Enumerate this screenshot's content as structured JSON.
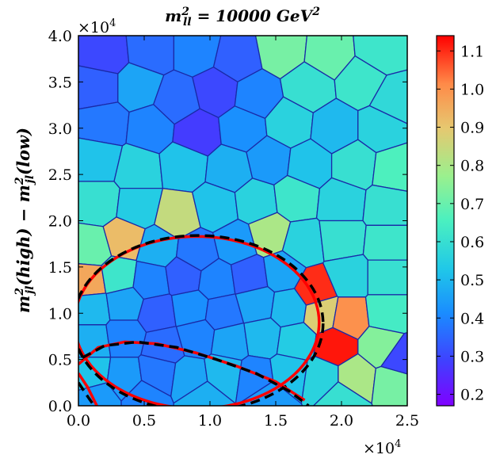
{
  "chart_data": {
    "type": "heatmap",
    "title": "m²ₗₗ = 10000 GeV²",
    "title_main": "m",
    "title_sup": "2",
    "title_sub": "ll",
    "title_rest": " = 10000 GeV",
    "title_unit_sup": "2",
    "ylabel": "m²ⱼₗ(high) − m²ⱼₗ(low)",
    "ylabel_parts": {
      "m": "m",
      "sup": "2",
      "sub": "jl",
      "a": "(high) − ",
      "b": "(low)"
    },
    "xlim": [
      0,
      25000
    ],
    "ylim": [
      0,
      40000
    ],
    "x_ticks": [
      0,
      5000,
      10000,
      15000,
      20000,
      25000
    ],
    "x_tick_labels": [
      "0.0",
      "0.5",
      "1.0",
      "1.5",
      "2.0",
      "2.5"
    ],
    "y_ticks": [
      0,
      5000,
      10000,
      15000,
      20000,
      25000,
      30000,
      35000,
      40000
    ],
    "y_tick_labels": [
      "0.0",
      "0.5",
      "1.0",
      "1.5",
      "2.0",
      "2.5",
      "3.0",
      "3.5",
      "4.0"
    ],
    "x_multiplier": "×10",
    "x_multiplier_exp": "4",
    "y_multiplier": "×10",
    "y_multiplier_exp": "4",
    "colorbar": {
      "min": 0.17,
      "max": 1.14,
      "ticks": [
        0.2,
        0.3,
        0.4,
        0.5,
        0.6,
        0.7,
        0.8,
        0.9,
        1.0,
        1.1
      ],
      "tick_labels": [
        "0.2",
        "0.3",
        "0.4",
        "0.5",
        "0.6",
        "0.7",
        "0.8",
        "0.9",
        "1.0",
        "1.1"
      ],
      "colormap": "rainbow"
    },
    "cell_edge_color": "#1a2aa8",
    "cells": [
      {
        "x": 2000,
        "y": 38000,
        "v": 0.3
      },
      {
        "x": 5500,
        "y": 38500,
        "v": 0.36
      },
      {
        "x": 9000,
        "y": 38500,
        "v": 0.4
      },
      {
        "x": 12000,
        "y": 37500,
        "v": 0.34
      },
      {
        "x": 15500,
        "y": 38500,
        "v": 0.72
      },
      {
        "x": 19000,
        "y": 38000,
        "v": 0.7
      },
      {
        "x": 23000,
        "y": 38500,
        "v": 0.62
      },
      {
        "x": 1500,
        "y": 34500,
        "v": 0.34
      },
      {
        "x": 4500,
        "y": 34500,
        "v": 0.46
      },
      {
        "x": 7500,
        "y": 33000,
        "v": 0.36
      },
      {
        "x": 10500,
        "y": 34000,
        "v": 0.3
      },
      {
        "x": 13500,
        "y": 33500,
        "v": 0.4
      },
      {
        "x": 17500,
        "y": 34500,
        "v": 0.6
      },
      {
        "x": 21500,
        "y": 35000,
        "v": 0.62
      },
      {
        "x": 24000,
        "y": 33000,
        "v": 0.58
      },
      {
        "x": 2000,
        "y": 30500,
        "v": 0.38
      },
      {
        "x": 5500,
        "y": 30000,
        "v": 0.4
      },
      {
        "x": 9000,
        "y": 29500,
        "v": 0.28
      },
      {
        "x": 12500,
        "y": 30000,
        "v": 0.42
      },
      {
        "x": 16000,
        "y": 30500,
        "v": 0.56
      },
      {
        "x": 19500,
        "y": 30000,
        "v": 0.5
      },
      {
        "x": 23000,
        "y": 30000,
        "v": 0.56
      },
      {
        "x": 1500,
        "y": 26500,
        "v": 0.52
      },
      {
        "x": 4500,
        "y": 25500,
        "v": 0.56
      },
      {
        "x": 8000,
        "y": 26000,
        "v": 0.52
      },
      {
        "x": 11500,
        "y": 25500,
        "v": 0.48
      },
      {
        "x": 14500,
        "y": 26500,
        "v": 0.44
      },
      {
        "x": 17500,
        "y": 26000,
        "v": 0.52
      },
      {
        "x": 21000,
        "y": 26000,
        "v": 0.6
      },
      {
        "x": 24000,
        "y": 25500,
        "v": 0.66
      },
      {
        "x": 1500,
        "y": 22000,
        "v": 0.6
      },
      {
        "x": 4500,
        "y": 21500,
        "v": 0.54
      },
      {
        "x": 7500,
        "y": 20500,
        "v": 0.84
      },
      {
        "x": 10500,
        "y": 21500,
        "v": 0.52
      },
      {
        "x": 13500,
        "y": 22000,
        "v": 0.56
      },
      {
        "x": 16500,
        "y": 22500,
        "v": 0.62
      },
      {
        "x": 20000,
        "y": 22000,
        "v": 0.56
      },
      {
        "x": 23500,
        "y": 21500,
        "v": 0.6
      },
      {
        "x": 1000,
        "y": 17000,
        "v": 0.7
      },
      {
        "x": 3500,
        "y": 18000,
        "v": 0.92
      },
      {
        "x": 6000,
        "y": 17000,
        "v": 0.48
      },
      {
        "x": 9000,
        "y": 16500,
        "v": 0.38
      },
      {
        "x": 12000,
        "y": 17500,
        "v": 0.44
      },
      {
        "x": 14500,
        "y": 18500,
        "v": 0.8
      },
      {
        "x": 17000,
        "y": 17500,
        "v": 0.56
      },
      {
        "x": 20000,
        "y": 18000,
        "v": 0.6
      },
      {
        "x": 23500,
        "y": 17500,
        "v": 0.62
      },
      {
        "x": 800,
        "y": 13500,
        "v": 0.96
      },
      {
        "x": 3000,
        "y": 14000,
        "v": 0.62
      },
      {
        "x": 5500,
        "y": 13500,
        "v": 0.4
      },
      {
        "x": 8000,
        "y": 14000,
        "v": 0.34
      },
      {
        "x": 10500,
        "y": 13500,
        "v": 0.4
      },
      {
        "x": 13000,
        "y": 14000,
        "v": 0.34
      },
      {
        "x": 15500,
        "y": 14500,
        "v": 0.46
      },
      {
        "x": 18000,
        "y": 12500,
        "v": 1.1
      },
      {
        "x": 20500,
        "y": 14000,
        "v": 0.56
      },
      {
        "x": 23500,
        "y": 14000,
        "v": 0.6
      },
      {
        "x": 1000,
        "y": 10500,
        "v": 0.5
      },
      {
        "x": 3500,
        "y": 11000,
        "v": 0.46
      },
      {
        "x": 6000,
        "y": 10000,
        "v": 0.34
      },
      {
        "x": 8500,
        "y": 10500,
        "v": 0.42
      },
      {
        "x": 11000,
        "y": 10000,
        "v": 0.38
      },
      {
        "x": 13500,
        "y": 11000,
        "v": 0.46
      },
      {
        "x": 16000,
        "y": 10500,
        "v": 0.5
      },
      {
        "x": 18500,
        "y": 10000,
        "v": 0.88
      },
      {
        "x": 20500,
        "y": 9500,
        "v": 1.0
      },
      {
        "x": 23500,
        "y": 10000,
        "v": 0.64
      },
      {
        "x": 1000,
        "y": 7000,
        "v": 0.48
      },
      {
        "x": 3500,
        "y": 7500,
        "v": 0.4
      },
      {
        "x": 6500,
        "y": 6500,
        "v": 0.36
      },
      {
        "x": 9000,
        "y": 7500,
        "v": 0.4
      },
      {
        "x": 11500,
        "y": 7000,
        "v": 0.46
      },
      {
        "x": 14000,
        "y": 7500,
        "v": 0.5
      },
      {
        "x": 16500,
        "y": 7000,
        "v": 0.54
      },
      {
        "x": 19500,
        "y": 6500,
        "v": 1.12
      },
      {
        "x": 23000,
        "y": 6500,
        "v": 0.74
      },
      {
        "x": 1000,
        "y": 3500,
        "v": 0.52
      },
      {
        "x": 3500,
        "y": 3000,
        "v": 0.44
      },
      {
        "x": 6000,
        "y": 3500,
        "v": 0.38
      },
      {
        "x": 8500,
        "y": 3000,
        "v": 0.46
      },
      {
        "x": 11000,
        "y": 3500,
        "v": 0.5
      },
      {
        "x": 13500,
        "y": 3000,
        "v": 0.4
      },
      {
        "x": 16000,
        "y": 3500,
        "v": 0.52
      },
      {
        "x": 18500,
        "y": 3000,
        "v": 0.56
      },
      {
        "x": 21000,
        "y": 3000,
        "v": 0.8
      },
      {
        "x": 24000,
        "y": 2500,
        "v": 0.72
      },
      {
        "x": 1500,
        "y": 800,
        "v": 0.44
      },
      {
        "x": 5000,
        "y": 900,
        "v": 0.4
      },
      {
        "x": 9500,
        "y": 800,
        "v": 0.48
      },
      {
        "x": 14500,
        "y": 800,
        "v": 0.44
      },
      {
        "x": 20000,
        "y": 800,
        "v": 0.6
      },
      {
        "x": 24500,
        "y": 5000,
        "v": 0.3
      }
    ],
    "overlays": {
      "red_circle": {
        "cx": 9000,
        "cy": 9000,
        "r": 9300,
        "color": "#ff0000"
      },
      "dashed_circle": {
        "cx": 9100,
        "cy": 8900,
        "r": 9500,
        "color": "#000000"
      },
      "red_inner_curve": {
        "points": [
          [
            0,
            4500
          ],
          [
            1500,
            6300
          ],
          [
            3500,
            6900
          ],
          [
            6000,
            6700
          ],
          [
            9000,
            5700
          ],
          [
            12000,
            4300
          ],
          [
            15000,
            2600
          ],
          [
            17200,
            600
          ]
        ],
        "color": "#ff0000"
      },
      "dashed_inner_curve": {
        "points": [
          [
            300,
            5200
          ],
          [
            2000,
            6500
          ],
          [
            4500,
            6900
          ],
          [
            7500,
            6300
          ],
          [
            10500,
            5000
          ],
          [
            13500,
            3500
          ],
          [
            16000,
            1600
          ],
          [
            17500,
            0
          ]
        ],
        "color": "#000000"
      },
      "red_lower_left": {
        "points": [
          [
            0,
            3500
          ],
          [
            700,
            2000
          ],
          [
            1400,
            0
          ]
        ],
        "color": "#ff0000"
      },
      "dashed_lower_left": {
        "points": [
          [
            0,
            2500
          ],
          [
            800,
            800
          ],
          [
            1200,
            0
          ]
        ],
        "color": "#000000"
      }
    }
  }
}
